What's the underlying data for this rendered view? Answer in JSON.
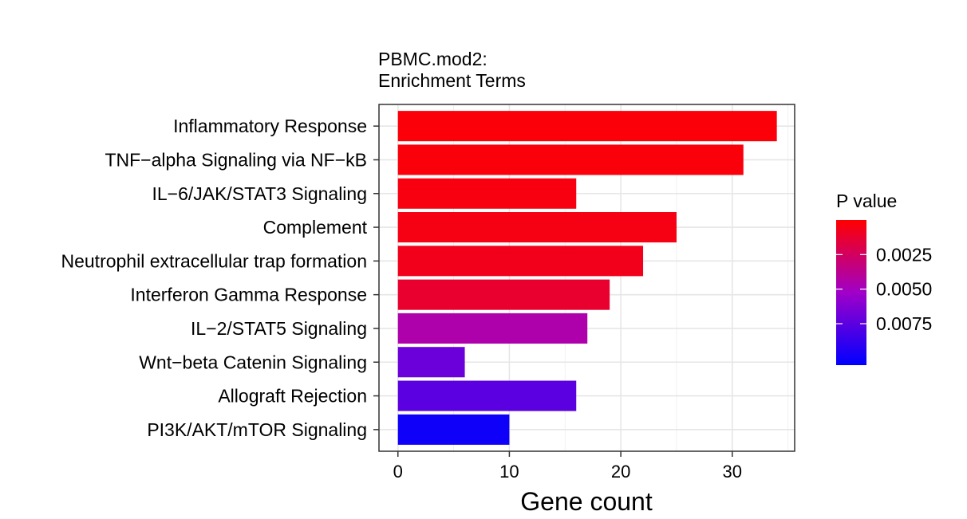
{
  "chart_data": {
    "type": "bar",
    "orientation": "horizontal",
    "title": "PBMC.mod2:",
    "subtitle": "Enrichment Terms",
    "xlabel": "Gene count",
    "ylabel": "",
    "xlim": [
      -1.7,
      35.6
    ],
    "x_ticks": [
      0,
      10,
      20,
      30
    ],
    "grid": true,
    "categories": [
      "Inflammatory Response",
      "TNF−alpha Signaling via NF−kB",
      "IL−6/JAK/STAT3 Signaling",
      "Complement",
      "Neutrophil extracellular trap formation",
      "Interferon Gamma Response",
      "IL−2/STAT5 Signaling",
      "Wnt−beta Catenin Signaling",
      "Allograft Rejection",
      "PI3K/AKT/mTOR  Signaling"
    ],
    "values": [
      34,
      31,
      16,
      25,
      22,
      19,
      17,
      6,
      16,
      10
    ],
    "p_values": [
      0.0002,
      0.0003,
      0.0004,
      0.0005,
      0.0007,
      0.0012,
      0.0045,
      0.007,
      0.0075,
      0.01
    ],
    "legend": {
      "title": "P value",
      "position": "right",
      "range": [
        0,
        0.0105
      ],
      "ticks": [
        0.0025,
        0.005,
        0.0075
      ],
      "tick_labels": [
        "0.0025",
        "0.0050",
        "0.0075"
      ],
      "colors": {
        "low": "#ff0000",
        "mid": "#a000c8",
        "high": "#0000ff"
      }
    }
  }
}
